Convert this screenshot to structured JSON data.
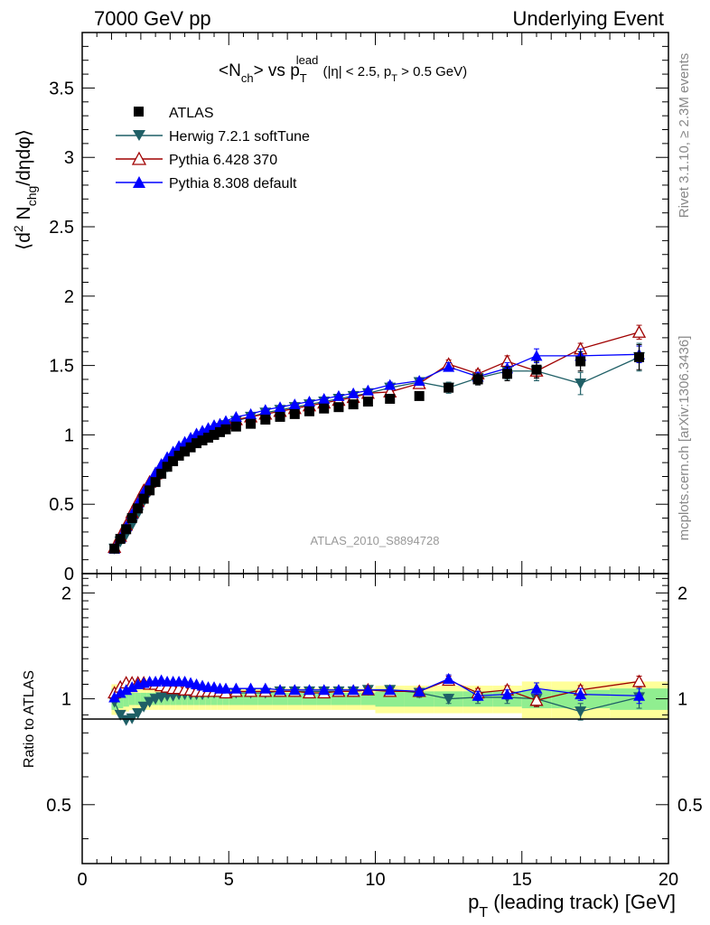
{
  "header": {
    "left": "7000 GeV pp",
    "right": "Underlying Event"
  },
  "side": {
    "rivet": "Rivet 3.1.10, ≥ 2.3M events",
    "mcplots": "mcplots.cern.ch [arXiv:1306.3436]"
  },
  "colors": {
    "atlas": "#000000",
    "herwig": "#1f5f66",
    "pythia6": "#a00000",
    "pythia8": "#0000ff",
    "band_inner": "#90ee90",
    "band_outer": "#ffff99"
  },
  "chart_data": [
    {
      "type": "scatter",
      "title_parts": [
        "<N",
        "ch",
        "> vs p",
        "T",
        "lead",
        " (|η| < 2.5, p",
        "T",
        " > 0.5 GeV)"
      ],
      "ylabel_parts": [
        "⟨d",
        "2",
        " N",
        "chg",
        "/dηdφ⟩"
      ],
      "watermark": "ATLAS_2010_S8894728",
      "xlim": [
        0,
        20
      ],
      "ylim": [
        0,
        3.9
      ],
      "yticks": [
        0,
        0.5,
        1,
        1.5,
        2,
        2.5,
        3,
        3.5
      ],
      "ytick_labels": [
        "0",
        "0.5",
        "1",
        "1.5",
        "2",
        "2.5",
        "3",
        "3.5"
      ],
      "legend_position": "top-left",
      "x": [
        1.1,
        1.3,
        1.5,
        1.7,
        1.9,
        2.1,
        2.3,
        2.5,
        2.7,
        2.9,
        3.1,
        3.3,
        3.5,
        3.7,
        3.9,
        4.1,
        4.3,
        4.5,
        4.7,
        4.9,
        5.25,
        5.75,
        6.25,
        6.75,
        7.25,
        7.75,
        8.25,
        8.75,
        9.25,
        9.75,
        10.5,
        11.5,
        12.5,
        13.5,
        14.5,
        15.5,
        17.0,
        19.0
      ],
      "series": [
        {
          "name": "ATLAS",
          "marker": "square",
          "values": [
            0.18,
            0.25,
            0.32,
            0.4,
            0.47,
            0.54,
            0.6,
            0.66,
            0.72,
            0.77,
            0.81,
            0.85,
            0.88,
            0.91,
            0.94,
            0.96,
            0.98,
            1.0,
            1.02,
            1.04,
            1.06,
            1.08,
            1.11,
            1.13,
            1.15,
            1.17,
            1.19,
            1.2,
            1.22,
            1.24,
            1.26,
            1.28,
            1.34,
            1.4,
            1.44,
            1.47,
            1.53,
            1.56
          ],
          "errors": [
            0,
            0,
            0,
            0,
            0,
            0,
            0,
            0,
            0,
            0,
            0,
            0,
            0,
            0,
            0,
            0,
            0,
            0,
            0,
            0,
            0,
            0,
            0,
            0,
            0,
            0,
            0,
            0,
            0,
            0,
            0.02,
            0.02,
            0.03,
            0.04,
            0.05,
            0.06,
            0.07,
            0.09
          ]
        },
        {
          "name": "Herwig 7.2.1 softTune",
          "marker": "triangle-down",
          "values": [
            0.18,
            0.23,
            0.28,
            0.35,
            0.43,
            0.52,
            0.59,
            0.66,
            0.72,
            0.77,
            0.82,
            0.86,
            0.9,
            0.93,
            0.96,
            0.99,
            1.01,
            1.03,
            1.05,
            1.07,
            1.1,
            1.13,
            1.16,
            1.18,
            1.2,
            1.22,
            1.24,
            1.26,
            1.28,
            1.3,
            1.34,
            1.38,
            1.34,
            1.41,
            1.46,
            1.46,
            1.37,
            1.56
          ],
          "errors": [
            0,
            0,
            0,
            0,
            0,
            0,
            0,
            0,
            0,
            0,
            0,
            0,
            0,
            0,
            0,
            0,
            0,
            0,
            0,
            0,
            0,
            0,
            0,
            0,
            0,
            0,
            0,
            0,
            0,
            0,
            0.02,
            0.03,
            0.04,
            0.05,
            0.06,
            0.07,
            0.08,
            0.1
          ]
        },
        {
          "name": "Pythia 6.428 370",
          "marker": "triangle-up-open",
          "values": [
            0.19,
            0.27,
            0.35,
            0.44,
            0.52,
            0.6,
            0.66,
            0.72,
            0.78,
            0.82,
            0.86,
            0.9,
            0.93,
            0.96,
            0.99,
            1.01,
            1.03,
            1.05,
            1.07,
            1.08,
            1.11,
            1.13,
            1.15,
            1.17,
            1.19,
            1.21,
            1.23,
            1.25,
            1.27,
            1.3,
            1.31,
            1.37,
            1.51,
            1.44,
            1.53,
            1.46,
            1.62,
            1.74
          ],
          "errors": [
            0,
            0,
            0,
            0,
            0,
            0,
            0,
            0,
            0,
            0,
            0,
            0,
            0,
            0,
            0,
            0,
            0,
            0,
            0,
            0,
            0,
            0,
            0,
            0,
            0,
            0,
            0,
            0,
            0,
            0,
            0.02,
            0.02,
            0.03,
            0.03,
            0.04,
            0.04,
            0.04,
            0.05
          ]
        },
        {
          "name": "Pythia 8.308 default",
          "marker": "triangle-up",
          "values": [
            0.18,
            0.26,
            0.34,
            0.43,
            0.51,
            0.59,
            0.66,
            0.73,
            0.79,
            0.84,
            0.88,
            0.92,
            0.95,
            0.98,
            1.01,
            1.03,
            1.05,
            1.07,
            1.08,
            1.1,
            1.13,
            1.15,
            1.18,
            1.2,
            1.22,
            1.24,
            1.26,
            1.28,
            1.3,
            1.32,
            1.36,
            1.39,
            1.49,
            1.42,
            1.48,
            1.57,
            1.57,
            1.58
          ],
          "errors": [
            0,
            0,
            0,
            0,
            0,
            0,
            0,
            0,
            0,
            0,
            0,
            0,
            0,
            0,
            0,
            0,
            0,
            0,
            0,
            0,
            0,
            0,
            0,
            0,
            0,
            0,
            0,
            0,
            0,
            0,
            0.02,
            0.02,
            0.03,
            0.03,
            0.04,
            0.05,
            0.05,
            0.06
          ]
        }
      ]
    },
    {
      "type": "scatter",
      "ylabel": "Ratio to ATLAS",
      "xlabel_parts": [
        "p",
        "T",
        " (leading track) [GeV]"
      ],
      "xlim": [
        0,
        20
      ],
      "ylim": [
        0.34,
        2.27
      ],
      "xticks": [
        0,
        5,
        10,
        15,
        20
      ],
      "xtick_labels": [
        "0",
        "5",
        "10",
        "15",
        "20"
      ],
      "yticks": [
        0.5,
        1,
        2
      ],
      "ytick_labels": [
        "0.5",
        "1",
        "2"
      ],
      "band_edges": [
        1.0,
        1.2,
        1.4,
        1.6,
        1.8,
        2.0,
        2.2,
        2.4,
        2.6,
        2.8,
        3.0,
        3.2,
        3.4,
        3.6,
        3.8,
        4.0,
        4.2,
        4.4,
        4.6,
        4.8,
        5.0,
        5.5,
        6.0,
        6.5,
        7.0,
        7.5,
        8.0,
        8.5,
        9.0,
        9.5,
        10.0,
        11.0,
        12.0,
        13.0,
        14.0,
        15.0,
        16.0,
        18.0,
        20.0
      ],
      "band_inner": [
        0.07,
        0.06,
        0.05,
        0.04,
        0.04,
        0.04,
        0.04,
        0.04,
        0.04,
        0.04,
        0.04,
        0.04,
        0.04,
        0.04,
        0.04,
        0.04,
        0.04,
        0.04,
        0.04,
        0.04,
        0.04,
        0.04,
        0.04,
        0.04,
        0.04,
        0.04,
        0.04,
        0.04,
        0.04,
        0.04,
        0.05,
        0.05,
        0.05,
        0.05,
        0.05,
        0.06,
        0.06,
        0.07
      ],
      "band_outer": [
        0.1,
        0.09,
        0.08,
        0.07,
        0.07,
        0.07,
        0.07,
        0.07,
        0.07,
        0.07,
        0.07,
        0.07,
        0.07,
        0.07,
        0.07,
        0.07,
        0.07,
        0.07,
        0.07,
        0.07,
        0.07,
        0.07,
        0.07,
        0.07,
        0.07,
        0.07,
        0.07,
        0.07,
        0.07,
        0.07,
        0.09,
        0.09,
        0.09,
        0.09,
        0.09,
        0.12,
        0.12,
        0.12
      ],
      "series": [
        {
          "name": "Herwig 7.2.1 softTune",
          "marker": "triangle-down",
          "values": [
            0.98,
            0.9,
            0.87,
            0.88,
            0.91,
            0.95,
            0.98,
            1.0,
            1.01,
            1.02,
            1.02,
            1.03,
            1.03,
            1.03,
            1.03,
            1.03,
            1.04,
            1.04,
            1.04,
            1.04,
            1.04,
            1.04,
            1.04,
            1.05,
            1.05,
            1.05,
            1.05,
            1.05,
            1.05,
            1.06,
            1.06,
            1.04,
            1.0,
            1.01,
            1.01,
            1.0,
            0.92,
            1.01
          ],
          "errors": [
            0,
            0,
            0,
            0,
            0,
            0,
            0,
            0,
            0,
            0,
            0,
            0,
            0,
            0,
            0,
            0,
            0,
            0,
            0,
            0,
            0,
            0,
            0,
            0,
            0,
            0,
            0,
            0,
            0,
            0,
            0.02,
            0.03,
            0.03,
            0.04,
            0.04,
            0.05,
            0.05,
            0.07
          ]
        },
        {
          "name": "Pythia 6.428 370",
          "marker": "triangle-up-open",
          "values": [
            1.04,
            1.08,
            1.11,
            1.11,
            1.11,
            1.11,
            1.1,
            1.1,
            1.09,
            1.08,
            1.07,
            1.07,
            1.06,
            1.06,
            1.05,
            1.05,
            1.05,
            1.05,
            1.05,
            1.04,
            1.05,
            1.05,
            1.05,
            1.05,
            1.05,
            1.04,
            1.04,
            1.05,
            1.05,
            1.06,
            1.05,
            1.05,
            1.13,
            1.04,
            1.06,
            0.99,
            1.06,
            1.12
          ],
          "errors": [
            0,
            0,
            0,
            0,
            0,
            0,
            0,
            0,
            0,
            0,
            0,
            0,
            0,
            0,
            0,
            0,
            0,
            0,
            0,
            0,
            0,
            0,
            0,
            0,
            0,
            0,
            0,
            0,
            0,
            0,
            0.02,
            0.02,
            0.03,
            0.03,
            0.03,
            0.04,
            0.03,
            0.04
          ]
        },
        {
          "name": "Pythia 8.308 default",
          "marker": "triangle-up",
          "values": [
            1.01,
            1.04,
            1.06,
            1.08,
            1.1,
            1.11,
            1.12,
            1.12,
            1.13,
            1.12,
            1.12,
            1.12,
            1.12,
            1.11,
            1.1,
            1.09,
            1.08,
            1.08,
            1.07,
            1.07,
            1.07,
            1.07,
            1.07,
            1.06,
            1.06,
            1.06,
            1.06,
            1.06,
            1.06,
            1.06,
            1.06,
            1.05,
            1.14,
            1.02,
            1.03,
            1.07,
            1.03,
            1.02
          ],
          "errors": [
            0,
            0,
            0,
            0,
            0,
            0,
            0,
            0,
            0,
            0,
            0,
            0,
            0,
            0,
            0,
            0,
            0,
            0,
            0,
            0,
            0,
            0,
            0,
            0,
            0,
            0,
            0,
            0,
            0,
            0,
            0.02,
            0.02,
            0.03,
            0.03,
            0.03,
            0.04,
            0.04,
            0.05
          ]
        }
      ]
    }
  ]
}
